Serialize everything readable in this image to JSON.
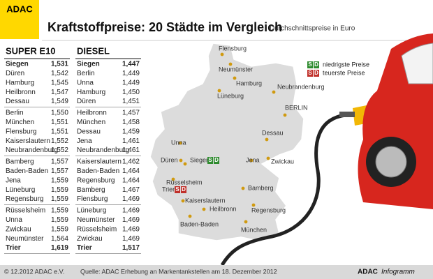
{
  "header": {
    "logo": "ADAC",
    "title": "Kraftstoffpreise: 20 Städte im Vergleich",
    "subtitle": "Durchschnittspreise in Euro"
  },
  "tables": [
    {
      "title": "SUPER E10",
      "rows": [
        [
          "Siegen",
          "1,531"
        ],
        [
          "Düren",
          "1,542"
        ],
        [
          "Hamburg",
          "1,545"
        ],
        [
          "Heilbronn",
          "1,547"
        ],
        [
          "Dessau",
          "1,549"
        ],
        [
          "Berlin",
          "1,550"
        ],
        [
          "München",
          "1,551"
        ],
        [
          "Flensburg",
          "1,551"
        ],
        [
          "Kaiserslautern",
          "1,552"
        ],
        [
          "Neubrandenburg",
          "1,552"
        ],
        [
          "Bamberg",
          "1,557"
        ],
        [
          "Baden-Baden",
          "1,557"
        ],
        [
          "Jena",
          "1,559"
        ],
        [
          "Lüneburg",
          "1,559"
        ],
        [
          "Regensburg",
          "1,559"
        ],
        [
          "Rüsselsheim",
          "1,559"
        ],
        [
          "Unna",
          "1,559"
        ],
        [
          "Zwickau",
          "1,559"
        ],
        [
          "Neumünster",
          "1,564"
        ],
        [
          "Trier",
          "1,619"
        ]
      ]
    },
    {
      "title": "DIESEL",
      "rows": [
        [
          "Siegen",
          "1,447"
        ],
        [
          "Berlin",
          "1,449"
        ],
        [
          "Unna",
          "1,449"
        ],
        [
          "Hamburg",
          "1,450"
        ],
        [
          "Düren",
          "1,451"
        ],
        [
          "Heilbronn",
          "1,457"
        ],
        [
          "München",
          "1,458"
        ],
        [
          "Dessau",
          "1,459"
        ],
        [
          "Jena",
          "1,461"
        ],
        [
          "Neubrandenburg",
          "1,461"
        ],
        [
          "Kaiserslautern",
          "1,462"
        ],
        [
          "Baden-Baden",
          "1,464"
        ],
        [
          "Regensburg",
          "1,464"
        ],
        [
          "Bamberg",
          "1,467"
        ],
        [
          "Flensburg",
          "1,469"
        ],
        [
          "Lüneburg",
          "1,469"
        ],
        [
          "Neumünster",
          "1,469"
        ],
        [
          "Rüsselsheim",
          "1,469"
        ],
        [
          "Zwickau",
          "1,469"
        ],
        [
          "Trier",
          "1,517"
        ]
      ]
    }
  ],
  "lowest_color": "#2e8b2e",
  "highest_color": "#c0302a",
  "legend": {
    "badge_letters": [
      "S",
      "D"
    ],
    "items": [
      "niedrigste Preise",
      "teuerste Preise"
    ]
  },
  "map": {
    "cities": [
      "Flensburg",
      "Neumünster",
      "Hamburg",
      "Neubrandenburg",
      "Lüneburg",
      "BERLIN",
      "Dessau",
      "Unna",
      "Düren",
      "Siegen",
      "Jena",
      "Zwickau",
      "Rüsselsheim",
      "Trier",
      "Bamberg",
      "Kaiserslautern",
      "Heilbronn",
      "Regensburg",
      "Baden-Baden",
      "München"
    ]
  },
  "footer": {
    "copyright": "© 12.2012 ADAC e.V.",
    "source": "Quelle: ADAC Erhebung an Markentankstellen am 18. Dezember 2012",
    "brand": "ADAC",
    "brand_suffix": "Infogramm"
  }
}
